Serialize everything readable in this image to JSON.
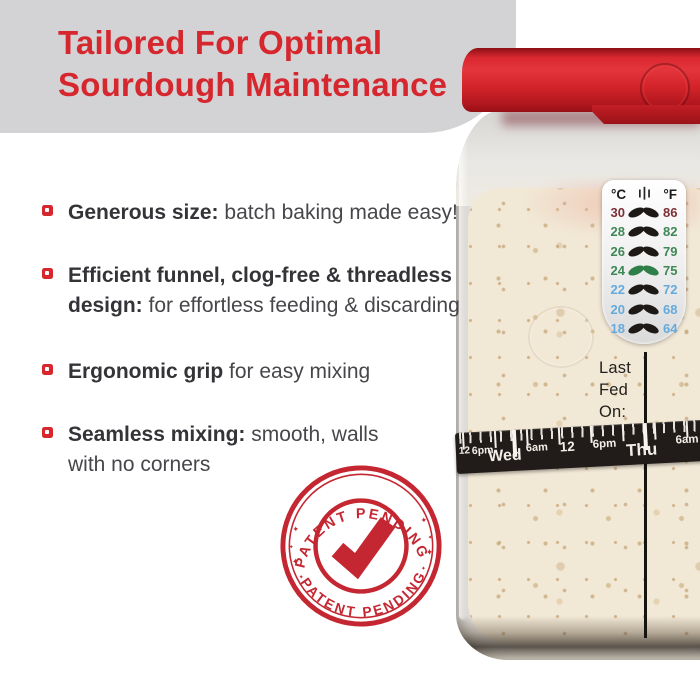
{
  "banner": {
    "title_line1": "Tailored For Optimal",
    "title_line2": "Sourdough Maintenance"
  },
  "bullets": [
    {
      "bold": "Generous size:",
      "text": "batch baking made easy!"
    },
    {
      "bold": "Efficient funnel, clog-free & threadless design:",
      "text": "for effortless feeding & discarding"
    },
    {
      "bold": "Ergonomic grip",
      "text": "for easy mixing"
    },
    {
      "bold": "Seamless mixing:",
      "text": "smooth, walls with no corners"
    }
  ],
  "thermometer": {
    "celsius_header": "°C",
    "fahrenheit_header": "°F",
    "rows": [
      {
        "c": "30",
        "f": "86",
        "tone": "warm",
        "leaf": "dark"
      },
      {
        "c": "28",
        "f": "82",
        "tone": "ok",
        "leaf": "dark"
      },
      {
        "c": "26",
        "f": "79",
        "tone": "ok",
        "leaf": "dark"
      },
      {
        "c": "24",
        "f": "75",
        "tone": "ok",
        "leaf": "ideal"
      },
      {
        "c": "22",
        "f": "72",
        "tone": "cool",
        "leaf": "dark"
      },
      {
        "c": "20",
        "f": "68",
        "tone": "cool",
        "leaf": "dark"
      },
      {
        "c": "18",
        "f": "64",
        "tone": "cool",
        "leaf": "dark"
      }
    ]
  },
  "jar": {
    "last_fed_line1": "Last",
    "last_fed_line2": "Fed",
    "last_fed_line3": "On:"
  },
  "band": {
    "labels": [
      "12",
      "6pm",
      "Wed",
      "6am",
      "12",
      "6pm",
      "Thu",
      "6am"
    ]
  },
  "stamp": {
    "top_text": "PATENT PENDING",
    "bottom_text": "PATENT PENDING",
    "star_glyph": "✦",
    "check_glyph": "checkmark"
  },
  "colors": {
    "accent_red": "#d6262e",
    "banner_gray": "#d3d3d5",
    "lid_red": "#d8252b",
    "stamp_red": "#c42731",
    "band_black": "#211c19",
    "dough": "#f2e8d6",
    "temp_warm": "#7d3136",
    "temp_ok": "#3f8756",
    "temp_cool": "#64aadc",
    "leaf_black": "#1c1916",
    "leaf_green": "#2f8048"
  }
}
